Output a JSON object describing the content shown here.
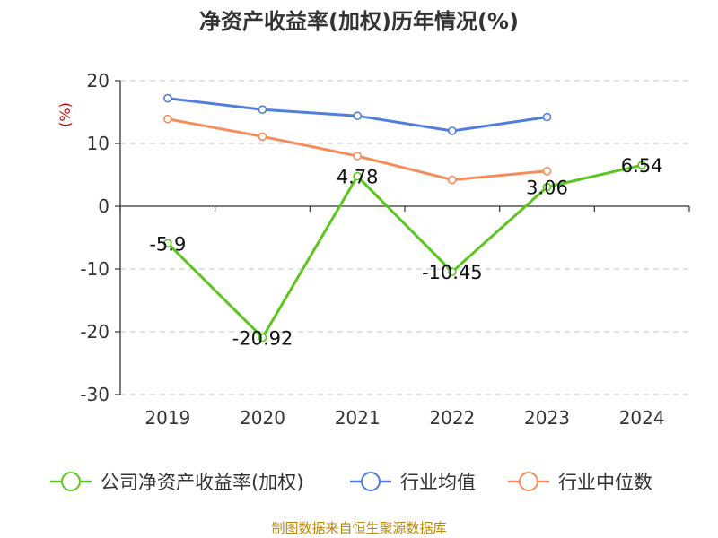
{
  "chart_data": {
    "type": "line",
    "title": "净资产收益率(加权)历年情况(%)",
    "ylabel": "(%)",
    "xlabel": "",
    "categories": [
      "2019",
      "2020",
      "2021",
      "2022",
      "2023",
      "2024"
    ],
    "ylim": [
      -30,
      20
    ],
    "yticks": [
      20,
      10,
      0,
      -10,
      -20,
      -30
    ],
    "grid": true,
    "legend_position": "bottom",
    "series": [
      {
        "name": "公司净资产收益率(加权)",
        "color": "#5cc51e",
        "values": [
          -5.9,
          -20.92,
          4.78,
          -10.45,
          3.06,
          6.54
        ],
        "data_labels": [
          "-5.9",
          "-20.92",
          "4.78",
          "-10.45",
          "3.06",
          "6.54"
        ]
      },
      {
        "name": "行业均值",
        "color": "#4f7fdb",
        "values": [
          17.2,
          15.4,
          14.4,
          12.0,
          14.2,
          null
        ]
      },
      {
        "name": "行业中位数",
        "color": "#f58c5a",
        "values": [
          13.9,
          11.1,
          8.0,
          4.2,
          5.6,
          null
        ]
      }
    ]
  },
  "source": "制图数据来自恒生聚源数据库"
}
